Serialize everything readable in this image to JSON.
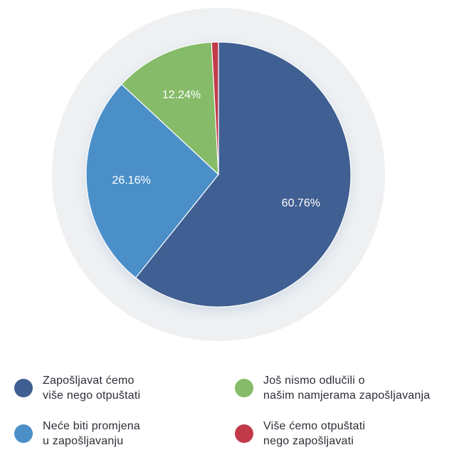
{
  "chart_data": {
    "type": "pie",
    "categories": [
      "Zapošljavat ćemo\nviše nego otpuštati",
      "Neće biti promjena\nu zapošljavanju",
      "Još nismo odlučili o\nnašim namjerama zapošljavanja",
      "Više ćemo otpuštati\nnego zapošljavati"
    ],
    "values": [
      60.76,
      26.16,
      12.24,
      0.84
    ],
    "data_labels": [
      "60.76%",
      "26.16%",
      "12.24%",
      ""
    ],
    "colors": [
      "#3f5f92",
      "#4b8fc9",
      "#86bb69",
      "#c13a4a"
    ],
    "title": "",
    "legend_position": "bottom"
  }
}
